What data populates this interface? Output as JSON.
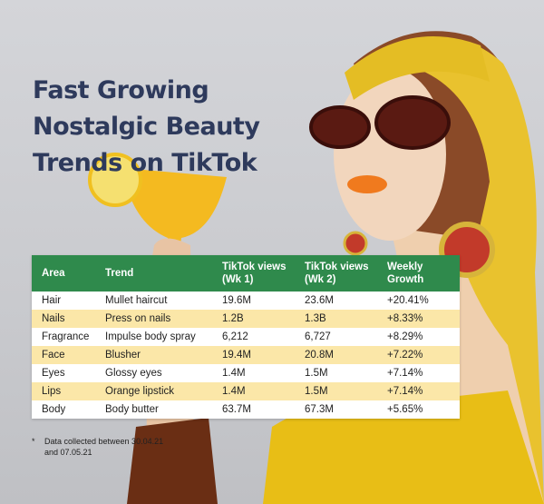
{
  "title_lines": [
    "Fast Growing",
    "Nostalgic Beauty",
    "Trends on TikTok"
  ],
  "colors": {
    "header_green": "#2f8a4c",
    "stripe_yellow": "#fbe7a8",
    "title_navy": "#2e3a5c"
  },
  "table": {
    "headers": [
      "Area",
      "Trend",
      "TikTok views",
      "TikTok views",
      "Weekly"
    ],
    "headers_line2": [
      "",
      "",
      "(Wk 1)",
      "(Wk 2)",
      "Growth"
    ],
    "rows": [
      [
        "Hair",
        "Mullet haircut",
        "19.6M",
        "23.6M",
        "+20.41%"
      ],
      [
        "Nails",
        "Press on nails",
        "1.2B",
        "1.3B",
        "+8.33%"
      ],
      [
        "Fragrance",
        "Impulse body spray",
        "6,212",
        "6,727",
        "+8.29%"
      ],
      [
        "Face",
        "Blusher",
        "19.4M",
        "20.8M",
        "+7.22%"
      ],
      [
        "Eyes",
        "Glossy eyes",
        "1.4M",
        "1.5M",
        "+7.14%"
      ],
      [
        "Lips",
        "Orange lipstick",
        "1.4M",
        "1.5M",
        "+7.14%"
      ],
      [
        "Body",
        "Body butter",
        "63.7M",
        "67.3M",
        "+5.65%"
      ]
    ]
  },
  "footnote": {
    "bullet": "*",
    "lines": [
      "Data collected between 30.04.21",
      "and 07.05.21"
    ]
  }
}
